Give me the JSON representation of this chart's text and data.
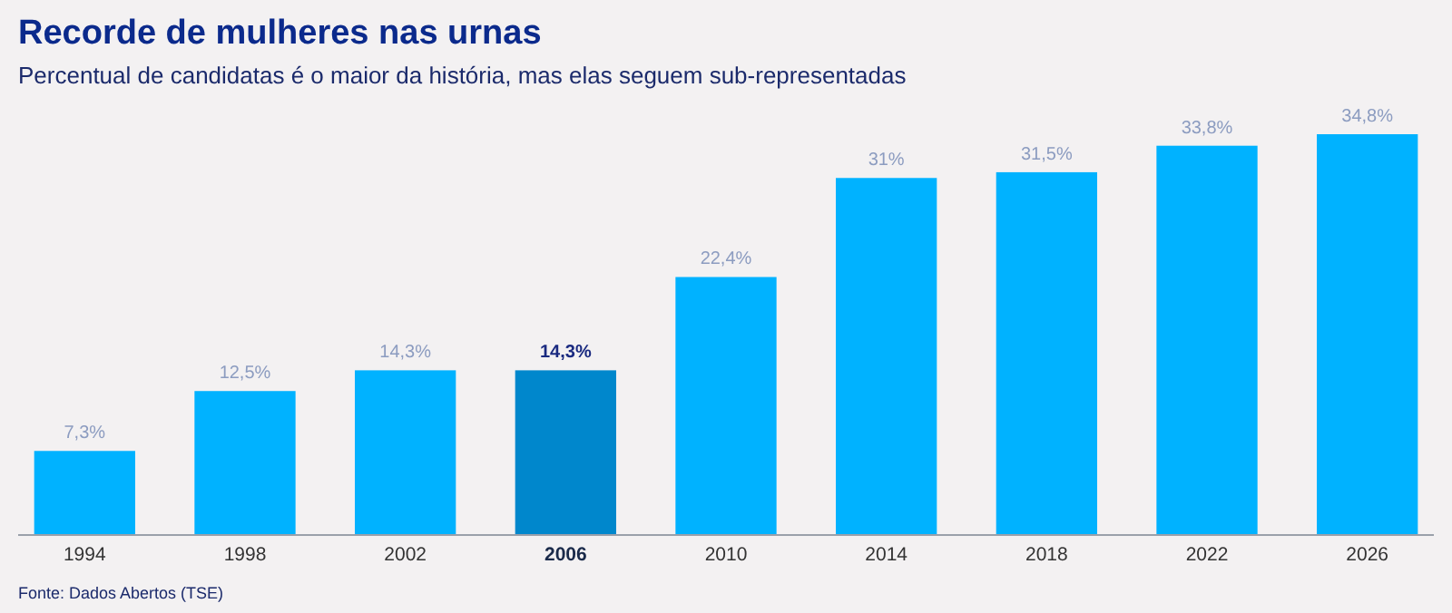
{
  "chart_data": {
    "type": "bar",
    "title": "Recorde de mulheres nas urnas",
    "subtitle": "Percentual de candidatas é o maior da história, mas elas seguem sub-representadas",
    "categories": [
      "1994",
      "1998",
      "2002",
      "2006",
      "2010",
      "2014",
      "2018",
      "2022",
      "2026"
    ],
    "values": [
      7.3,
      12.5,
      14.3,
      14.3,
      22.4,
      31,
      31.5,
      33.8,
      34.8
    ],
    "value_labels": [
      "7,3%",
      "12,5%",
      "14,3%",
      "14,3%",
      "22,4%",
      "31%",
      "31,5%",
      "33,8%",
      "34,8%"
    ],
    "colors": [
      "#00b2ff",
      "#00b2ff",
      "#00b2ff",
      "#0087cc",
      "#00b2ff",
      "#00b2ff",
      "#00b2ff",
      "#00b2ff",
      "#00b2ff"
    ],
    "annotations": [
      "Fonte: Dados Abertos (TSE)"
    ]
  }
}
